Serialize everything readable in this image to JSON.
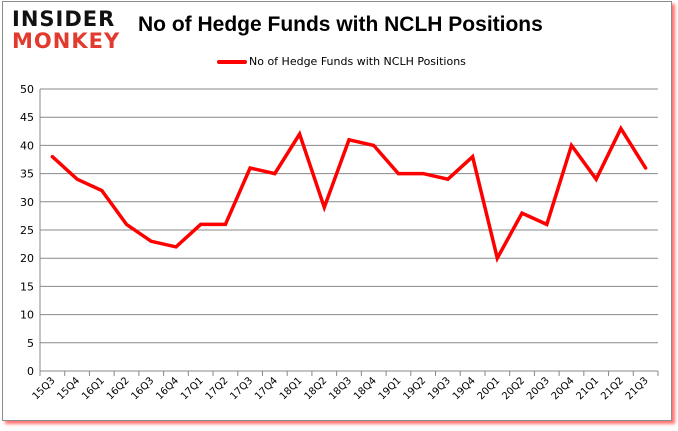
{
  "logo": {
    "line1": "INSIDER",
    "line2": "MONKEY"
  },
  "colors": {
    "series": "#ff0000",
    "grid": "#888888",
    "logo_red": "#e23a2e"
  },
  "chart_data": {
    "type": "line",
    "title": "No of Hedge Funds with NCLH Positions",
    "xlabel": "",
    "ylabel": "",
    "ylim": [
      0,
      50
    ],
    "yticks": [
      0,
      5,
      10,
      15,
      20,
      25,
      30,
      35,
      40,
      45,
      50
    ],
    "grid": true,
    "legend_position": "top",
    "categories": [
      "15Q3",
      "15Q4",
      "16Q1",
      "16Q2",
      "16Q3",
      "16Q4",
      "17Q1",
      "17Q2",
      "17Q3",
      "17Q4",
      "18Q1",
      "18Q2",
      "18Q3",
      "18Q4",
      "19Q1",
      "19Q2",
      "19Q3",
      "19Q4",
      "20Q1",
      "20Q2",
      "20Q3",
      "20Q4",
      "21Q1",
      "21Q2",
      "21Q3"
    ],
    "series": [
      {
        "name": "No of Hedge Funds with NCLH Positions",
        "color": "#ff0000",
        "values": [
          38,
          34,
          32,
          26,
          23,
          22,
          26,
          26,
          36,
          35,
          42,
          29,
          41,
          40,
          35,
          35,
          34,
          38,
          20,
          28,
          26,
          40,
          34,
          43,
          36
        ]
      }
    ]
  }
}
